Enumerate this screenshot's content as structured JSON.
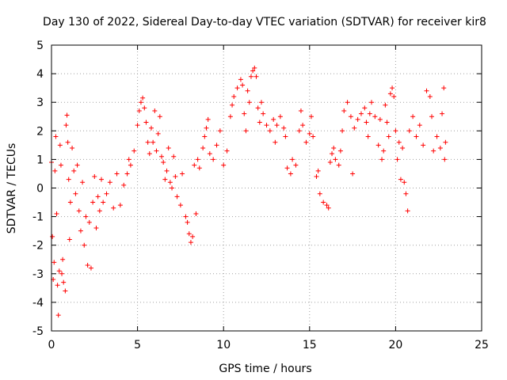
{
  "chart_data": {
    "type": "scatter",
    "title": "Day 130 of 2022, Sidereal Day-to-day VTEC variation (SDTVAR) for receiver kir8",
    "xlabel": "GPS time / hours",
    "ylabel": "SDTVAR / TECUs",
    "xlim": [
      0,
      25
    ],
    "ylim": [
      -5,
      5
    ],
    "xticks": [
      "0",
      "5",
      "10",
      "15",
      "20",
      "25"
    ],
    "yticks": [
      "-5",
      "-4",
      "-3",
      "-2",
      "-1",
      "0",
      "1",
      "2",
      "3",
      "4",
      "5"
    ],
    "grid": true,
    "marker": "+",
    "color": "#ff0000",
    "series": [
      {
        "name": "SDTVAR",
        "points": [
          [
            0.0,
            0.9
          ],
          [
            0.05,
            -1.7
          ],
          [
            0.1,
            -3.2
          ],
          [
            0.15,
            -2.6
          ],
          [
            0.2,
            0.6
          ],
          [
            0.25,
            1.8
          ],
          [
            0.3,
            -0.9
          ],
          [
            0.35,
            -3.4
          ],
          [
            0.4,
            -4.45
          ],
          [
            0.45,
            -2.9
          ],
          [
            0.5,
            1.5
          ],
          [
            0.55,
            0.8
          ],
          [
            0.6,
            -3.0
          ],
          [
            0.65,
            -2.5
          ],
          [
            0.7,
            -3.3
          ],
          [
            0.8,
            -3.6
          ],
          [
            0.85,
            2.2
          ],
          [
            0.9,
            2.55
          ],
          [
            0.95,
            1.6
          ],
          [
            1.0,
            0.3
          ],
          [
            1.05,
            -1.8
          ],
          [
            1.1,
            -0.5
          ],
          [
            1.2,
            1.4
          ],
          [
            1.3,
            0.6
          ],
          [
            1.4,
            -0.2
          ],
          [
            1.5,
            0.8
          ],
          [
            1.6,
            -0.8
          ],
          [
            1.7,
            -1.5
          ],
          [
            1.8,
            0.2
          ],
          [
            1.9,
            -2.0
          ],
          [
            2.0,
            -1.0
          ],
          [
            2.1,
            -2.7
          ],
          [
            2.2,
            -1.2
          ],
          [
            2.3,
            -2.8
          ],
          [
            2.4,
            -0.5
          ],
          [
            2.5,
            0.4
          ],
          [
            2.6,
            -1.4
          ],
          [
            2.7,
            -0.3
          ],
          [
            2.8,
            -0.8
          ],
          [
            2.9,
            0.3
          ],
          [
            3.0,
            -0.5
          ],
          [
            3.2,
            -0.2
          ],
          [
            3.4,
            0.2
          ],
          [
            3.6,
            -0.7
          ],
          [
            3.8,
            0.5
          ],
          [
            4.0,
            -0.6
          ],
          [
            4.2,
            0.1
          ],
          [
            4.4,
            0.5
          ],
          [
            4.5,
            1.0
          ],
          [
            4.6,
            0.8
          ],
          [
            4.8,
            1.3
          ],
          [
            5.0,
            2.2
          ],
          [
            5.1,
            2.7
          ],
          [
            5.2,
            3.0
          ],
          [
            5.3,
            3.15
          ],
          [
            5.4,
            2.8
          ],
          [
            5.5,
            2.3
          ],
          [
            5.6,
            1.6
          ],
          [
            5.7,
            1.2
          ],
          [
            5.8,
            2.1
          ],
          [
            5.9,
            1.6
          ],
          [
            6.0,
            2.7
          ],
          [
            6.1,
            1.3
          ],
          [
            6.2,
            1.9
          ],
          [
            6.3,
            2.5
          ],
          [
            6.4,
            1.1
          ],
          [
            6.5,
            0.9
          ],
          [
            6.6,
            0.3
          ],
          [
            6.7,
            0.6
          ],
          [
            6.8,
            1.4
          ],
          [
            6.9,
            0.2
          ],
          [
            7.0,
            0.0
          ],
          [
            7.1,
            1.1
          ],
          [
            7.2,
            0.4
          ],
          [
            7.3,
            -0.3
          ],
          [
            7.5,
            -0.6
          ],
          [
            7.6,
            0.5
          ],
          [
            7.8,
            -1.0
          ],
          [
            7.9,
            -1.2
          ],
          [
            8.0,
            -1.6
          ],
          [
            8.1,
            -1.9
          ],
          [
            8.2,
            -1.7
          ],
          [
            8.3,
            0.8
          ],
          [
            8.4,
            -0.9
          ],
          [
            8.5,
            1.0
          ],
          [
            8.6,
            0.7
          ],
          [
            8.8,
            1.4
          ],
          [
            8.9,
            1.8
          ],
          [
            9.0,
            2.1
          ],
          [
            9.1,
            2.4
          ],
          [
            9.2,
            1.2
          ],
          [
            9.4,
            1.0
          ],
          [
            9.6,
            1.5
          ],
          [
            9.8,
            2.0
          ],
          [
            10.0,
            0.8
          ],
          [
            10.2,
            1.3
          ],
          [
            10.4,
            2.5
          ],
          [
            10.5,
            2.9
          ],
          [
            10.6,
            3.2
          ],
          [
            10.8,
            3.5
          ],
          [
            11.0,
            3.8
          ],
          [
            11.1,
            3.6
          ],
          [
            11.2,
            2.6
          ],
          [
            11.3,
            2.0
          ],
          [
            11.4,
            3.4
          ],
          [
            11.5,
            3.0
          ],
          [
            11.6,
            3.9
          ],
          [
            11.7,
            4.1
          ],
          [
            11.8,
            4.2
          ],
          [
            11.9,
            3.9
          ],
          [
            12.0,
            2.8
          ],
          [
            12.1,
            2.3
          ],
          [
            12.2,
            3.0
          ],
          [
            12.3,
            2.6
          ],
          [
            12.5,
            2.2
          ],
          [
            12.7,
            2.0
          ],
          [
            12.9,
            2.4
          ],
          [
            13.0,
            1.6
          ],
          [
            13.1,
            2.2
          ],
          [
            13.3,
            2.5
          ],
          [
            13.5,
            2.1
          ],
          [
            13.6,
            1.8
          ],
          [
            13.7,
            0.7
          ],
          [
            13.9,
            0.5
          ],
          [
            14.0,
            1.0
          ],
          [
            14.2,
            0.8
          ],
          [
            14.4,
            2.0
          ],
          [
            14.5,
            2.7
          ],
          [
            14.6,
            2.2
          ],
          [
            14.8,
            1.6
          ],
          [
            15.0,
            1.9
          ],
          [
            15.1,
            2.5
          ],
          [
            15.2,
            1.8
          ],
          [
            15.4,
            0.4
          ],
          [
            15.5,
            0.6
          ],
          [
            15.6,
            -0.2
          ],
          [
            15.8,
            -0.5
          ],
          [
            16.0,
            -0.6
          ],
          [
            16.1,
            -0.7
          ],
          [
            16.2,
            0.9
          ],
          [
            16.3,
            1.2
          ],
          [
            16.4,
            1.4
          ],
          [
            16.5,
            1.0
          ],
          [
            16.7,
            0.8
          ],
          [
            16.8,
            1.3
          ],
          [
            16.9,
            2.0
          ],
          [
            17.0,
            2.7
          ],
          [
            17.2,
            3.0
          ],
          [
            17.4,
            2.5
          ],
          [
            17.5,
            0.5
          ],
          [
            17.6,
            2.1
          ],
          [
            17.8,
            2.4
          ],
          [
            18.0,
            2.6
          ],
          [
            18.2,
            2.8
          ],
          [
            18.3,
            2.3
          ],
          [
            18.4,
            1.8
          ],
          [
            18.5,
            2.6
          ],
          [
            18.6,
            3.0
          ],
          [
            18.8,
            2.5
          ],
          [
            19.0,
            1.5
          ],
          [
            19.1,
            2.4
          ],
          [
            19.2,
            1.0
          ],
          [
            19.3,
            1.3
          ],
          [
            19.4,
            2.9
          ],
          [
            19.5,
            2.3
          ],
          [
            19.6,
            1.8
          ],
          [
            19.7,
            3.3
          ],
          [
            19.8,
            3.5
          ],
          [
            19.9,
            3.2
          ],
          [
            20.0,
            2.0
          ],
          [
            20.1,
            1.0
          ],
          [
            20.2,
            1.6
          ],
          [
            20.3,
            0.3
          ],
          [
            20.4,
            1.4
          ],
          [
            20.5,
            0.2
          ],
          [
            20.6,
            -0.2
          ],
          [
            20.7,
            -0.8
          ],
          [
            20.8,
            2.0
          ],
          [
            21.0,
            2.5
          ],
          [
            21.2,
            1.8
          ],
          [
            21.4,
            2.2
          ],
          [
            21.6,
            1.5
          ],
          [
            21.8,
            3.4
          ],
          [
            22.0,
            3.2
          ],
          [
            22.1,
            2.5
          ],
          [
            22.2,
            1.3
          ],
          [
            22.4,
            1.8
          ],
          [
            22.6,
            1.4
          ],
          [
            22.7,
            2.6
          ],
          [
            22.8,
            3.5
          ],
          [
            22.85,
            1.0
          ],
          [
            22.9,
            1.6
          ]
        ]
      }
    ]
  }
}
